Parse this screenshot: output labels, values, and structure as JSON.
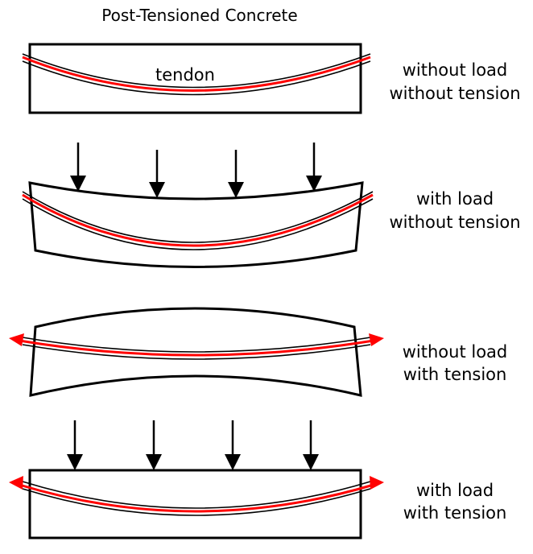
{
  "title": "Post-Tensioned Concrete",
  "tendon_label": "tendon",
  "panels": [
    {
      "line1": "without load",
      "line2": "without tension"
    },
    {
      "line1": "with load",
      "line2": "without tension"
    },
    {
      "line1": "without load",
      "line2": "with tension"
    },
    {
      "line1": "with load",
      "line2": "with tension"
    }
  ],
  "colors": {
    "tendon": "#ff0000",
    "outline": "#000000",
    "background": "#ffffff"
  }
}
